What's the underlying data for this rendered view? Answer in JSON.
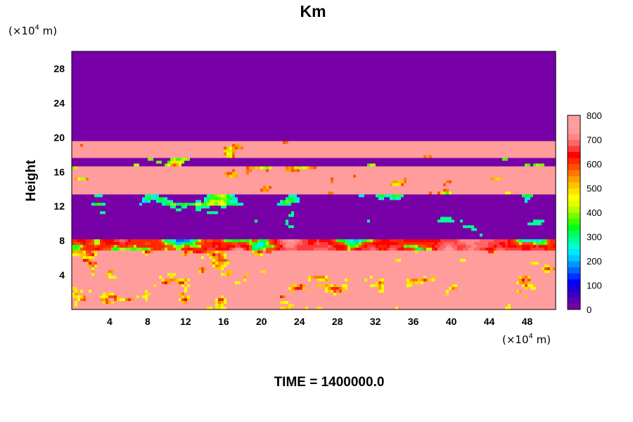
{
  "chart_data": {
    "type": "heatmap",
    "title": "Km",
    "ylabel": "Height",
    "xlabel": "",
    "x_unit_prefix": "(×10",
    "x_unit_exp": "4",
    "x_unit_suffix": " m)",
    "y_unit_prefix": "(×10",
    "y_unit_exp": "4",
    "y_unit_suffix": " m)",
    "xlim": [
      0,
      51
    ],
    "ylim": [
      0,
      30
    ],
    "x_ticks": [
      4,
      8,
      12,
      16,
      20,
      24,
      28,
      32,
      36,
      40,
      44,
      48
    ],
    "y_ticks": [
      4,
      8,
      12,
      16,
      20,
      24,
      28
    ],
    "colorbar": {
      "min": 0,
      "max": 800,
      "step": 25,
      "tick_values": [
        0,
        100,
        200,
        300,
        400,
        500,
        600,
        700,
        800
      ],
      "colors": [
        "#7700a6",
        "#5d00b0",
        "#3a00c2",
        "#1c00d6",
        "#0000ff",
        "#0030ff",
        "#0066ff",
        "#0096ff",
        "#00c8ff",
        "#00e8ff",
        "#00ffd2",
        "#00ff96",
        "#00ff5a",
        "#00ff1e",
        "#3cff00",
        "#78ff00",
        "#b4ff00",
        "#e6ff00",
        "#ffff00",
        "#ffe100",
        "#ffc300",
        "#ffa000",
        "#ff7800",
        "#ff5000",
        "#ff2800",
        "#ff0000",
        "#ff3c3c",
        "#ff6464",
        "#ff8888",
        "#ff9a9a",
        "#ffa0a0",
        "#ff9d9d"
      ]
    },
    "field_description_regions": {
      "low_value_bands_height": [
        [
          0,
          0
        ],
        [
          8.3,
          9.9
        ],
        [
          9.9,
          13.3
        ],
        [
          16.6,
          17.5
        ],
        [
          19.5,
          30
        ]
      ],
      "high_value_bands_height": [
        [
          0,
          8.2
        ],
        [
          13.3,
          16.6
        ],
        [
          17.5,
          19.5
        ]
      ],
      "background_value": 0,
      "high_value": 800
    }
  },
  "footer": {
    "time_label": "TIME = 1400000.0"
  }
}
